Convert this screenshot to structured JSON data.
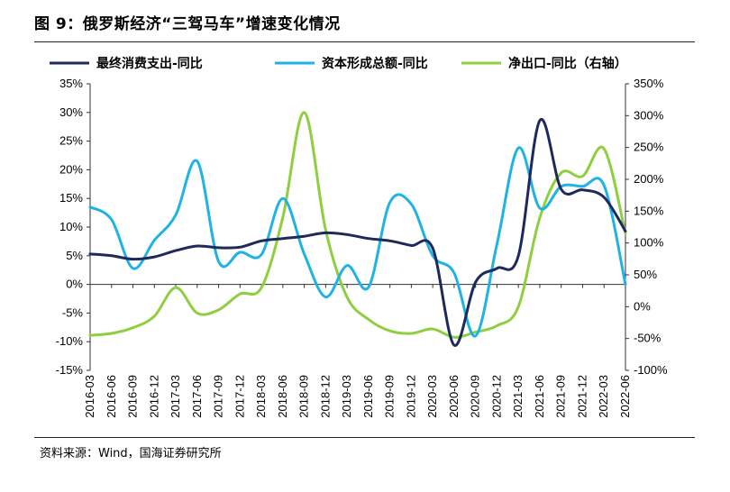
{
  "title": "图 9：俄罗斯经济“三驾马车”增速变化情况",
  "source": "资料来源：Wind，国海证券研究所",
  "chart_data": {
    "type": "line",
    "x": [
      "2016-03",
      "2016-06",
      "2016-09",
      "2016-12",
      "2017-03",
      "2017-06",
      "2017-09",
      "2017-12",
      "2018-03",
      "2018-06",
      "2018-09",
      "2018-12",
      "2019-03",
      "2019-06",
      "2019-09",
      "2019-12",
      "2020-03",
      "2020-06",
      "2020-09",
      "2020-12",
      "2021-03",
      "2021-06",
      "2021-09",
      "2021-12",
      "2022-03",
      "2022-06"
    ],
    "y_left": {
      "lim": [
        -15,
        35
      ],
      "ticks": [
        "-15%",
        "-10%",
        "-5%",
        "0%",
        "5%",
        "10%",
        "15%",
        "20%",
        "25%",
        "30%",
        "35%"
      ]
    },
    "y_right": {
      "lim": [
        -100,
        350
      ],
      "ticks": [
        "-100%",
        "-50%",
        "0%",
        "50%",
        "100%",
        "150%",
        "200%",
        "250%",
        "300%",
        "350%"
      ]
    },
    "legend_position": "top",
    "grid": false,
    "series": [
      {
        "name": "最终消费支出-同比",
        "axis": "left",
        "color": "#1f2a5c",
        "values": [
          5.3,
          5.0,
          4.4,
          4.8,
          5.9,
          6.7,
          6.4,
          6.5,
          7.6,
          8.0,
          8.4,
          9.0,
          8.7,
          8.0,
          7.6,
          6.8,
          6.3,
          -10.6,
          0.4,
          2.8,
          5.0,
          28.6,
          16.6,
          16.5,
          15.2,
          9.3
        ]
      },
      {
        "name": "资本形成总额-同比",
        "axis": "left",
        "color": "#1fb2e6",
        "values": [
          13.5,
          11.3,
          2.8,
          7.7,
          12.1,
          21.5,
          4.0,
          5.6,
          5.2,
          15.0,
          5.3,
          -2.2,
          3.3,
          -0.5,
          14.3,
          14.0,
          5.0,
          2.0,
          -9.0,
          7.0,
          23.8,
          13.3,
          17.1,
          17.1,
          17.3,
          0.0
        ]
      },
      {
        "name": "净出口-同比（右轴）",
        "axis": "right",
        "color": "#8fce3f",
        "values": [
          -45,
          -42,
          -33,
          -15,
          30,
          -10,
          -5,
          20,
          30,
          140,
          305,
          120,
          15,
          -20,
          -38,
          -42,
          -35,
          -48,
          -40,
          -30,
          0,
          140,
          210,
          205,
          248,
          115
        ]
      }
    ]
  }
}
